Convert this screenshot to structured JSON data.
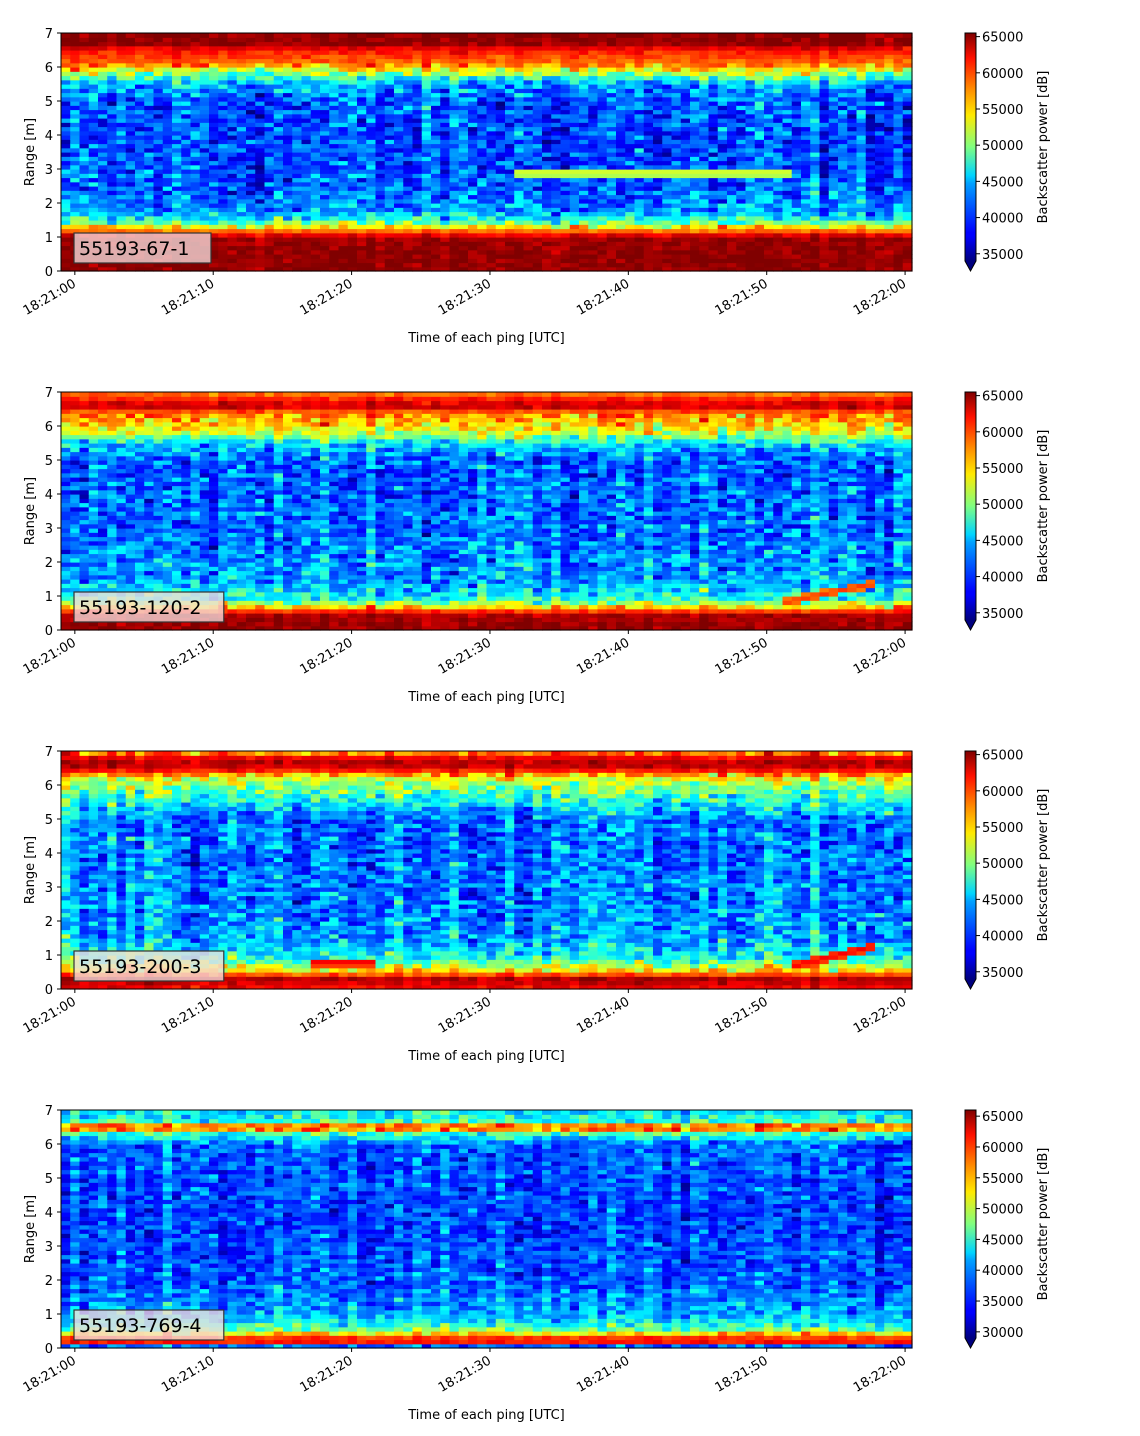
{
  "chart_data": [
    {
      "type": "heatmap",
      "label": "55193-67-1",
      "xlabel": "Time of each ping [UTC]",
      "ylabel": "Range [m]",
      "x_ticks": [
        "18:21:00",
        "18:21:10",
        "18:21:20",
        "18:21:30",
        "18:21:40",
        "18:21:50",
        "18:22:00"
      ],
      "x_range": [
        "18:21:00",
        "18:22:00"
      ],
      "y_ticks": [
        0,
        1,
        2,
        3,
        4,
        5,
        6,
        7
      ],
      "ylim": [
        0,
        7
      ],
      "colorbar": {
        "label": "Backscatter power [dB]",
        "colormap": "jet",
        "ticks": [
          35000,
          40000,
          45000,
          50000,
          55000,
          60000,
          65000
        ],
        "range": [
          34000,
          65500
        ],
        "extend": "min"
      },
      "profile": [
        {
          "range": 0.2,
          "value": 65000
        },
        {
          "range": 0.5,
          "value": 65000
        },
        {
          "range": 1.0,
          "value": 64500
        },
        {
          "range": 1.25,
          "value": 56000
        },
        {
          "range": 1.5,
          "value": 47000
        },
        {
          "range": 1.8,
          "value": 42500
        },
        {
          "range": 2.5,
          "value": 40500
        },
        {
          "range": 4.0,
          "value": 40000
        },
        {
          "range": 5.0,
          "value": 40500
        },
        {
          "range": 5.5,
          "value": 43000
        },
        {
          "range": 5.8,
          "value": 50000
        },
        {
          "range": 6.1,
          "value": 58000
        },
        {
          "range": 6.5,
          "value": 61000
        },
        {
          "range": 6.7,
          "value": 65000
        }
      ],
      "features": [
        {
          "description": "echo trace",
          "t_start": "18:21:32",
          "t_end": "18:21:52",
          "range": 2.9,
          "value": 53000
        }
      ]
    },
    {
      "type": "heatmap",
      "label": "55193-120-2",
      "xlabel": "Time of each ping [UTC]",
      "ylabel": "Range [m]",
      "x_ticks": [
        "18:21:00",
        "18:21:10",
        "18:21:20",
        "18:21:30",
        "18:21:40",
        "18:21:50",
        "18:22:00"
      ],
      "x_range": [
        "18:21:00",
        "18:22:00"
      ],
      "y_ticks": [
        0,
        1,
        2,
        3,
        4,
        5,
        6,
        7
      ],
      "ylim": [
        0,
        7
      ],
      "colorbar": {
        "label": "Backscatter power [dB]",
        "colormap": "jet",
        "ticks": [
          35000,
          40000,
          45000,
          50000,
          55000,
          60000,
          65000
        ],
        "range": [
          34000,
          65500
        ],
        "extend": "min"
      },
      "profile": [
        {
          "range": 0.1,
          "value": 65000
        },
        {
          "range": 0.45,
          "value": 64000
        },
        {
          "range": 0.65,
          "value": 57000
        },
        {
          "range": 0.9,
          "value": 47000
        },
        {
          "range": 1.5,
          "value": 43000
        },
        {
          "range": 3.0,
          "value": 41500
        },
        {
          "range": 5.0,
          "value": 41000
        },
        {
          "range": 5.5,
          "value": 45000
        },
        {
          "range": 5.8,
          "value": 52000
        },
        {
          "range": 6.1,
          "value": 56000
        },
        {
          "range": 6.4,
          "value": 58000
        },
        {
          "range": 6.6,
          "value": 64000
        },
        {
          "range": 6.85,
          "value": 60000
        },
        {
          "range": 7.0,
          "value": 57000
        }
      ],
      "features": [
        {
          "description": "rising echo",
          "t_start": "18:21:51",
          "t_end": "18:21:58",
          "range_start": 0.8,
          "range_end": 1.4,
          "value": 60000
        }
      ]
    },
    {
      "type": "heatmap",
      "label": "55193-200-3",
      "xlabel": "Time of each ping [UTC]",
      "ylabel": "Range [m]",
      "x_ticks": [
        "18:21:00",
        "18:21:10",
        "18:21:20",
        "18:21:30",
        "18:21:40",
        "18:21:50",
        "18:22:00"
      ],
      "x_range": [
        "18:21:00",
        "18:22:00"
      ],
      "y_ticks": [
        0,
        1,
        2,
        3,
        4,
        5,
        6,
        7
      ],
      "ylim": [
        0,
        7
      ],
      "colorbar": {
        "label": "Backscatter power [dB]",
        "colormap": "jet",
        "ticks": [
          35000,
          40000,
          45000,
          50000,
          55000,
          60000,
          65000
        ],
        "range": [
          34000,
          65500
        ],
        "extend": "min"
      },
      "profile": [
        {
          "range": 0.1,
          "value": 62000
        },
        {
          "range": 0.3,
          "value": 64500
        },
        {
          "range": 0.55,
          "value": 55000
        },
        {
          "range": 0.9,
          "value": 47000
        },
        {
          "range": 1.5,
          "value": 43000
        },
        {
          "range": 3.0,
          "value": 42000
        },
        {
          "range": 5.0,
          "value": 41500
        },
        {
          "range": 5.5,
          "value": 46000
        },
        {
          "range": 5.9,
          "value": 50000
        },
        {
          "range": 6.2,
          "value": 53000
        },
        {
          "range": 6.5,
          "value": 63000
        },
        {
          "range": 6.75,
          "value": 64000
        },
        {
          "range": 7.0,
          "value": 56000
        }
      ],
      "features": [
        {
          "description": "echo trace",
          "t_start": "18:21:17",
          "t_end": "18:21:22",
          "range": 0.8,
          "value": 62000
        },
        {
          "description": "rising echo",
          "t_start": "18:21:52",
          "t_end": "18:21:58",
          "range_start": 0.7,
          "range_end": 1.3,
          "value": 62000
        }
      ]
    },
    {
      "type": "heatmap",
      "label": "55193-769-4",
      "xlabel": "Time of each ping [UTC]",
      "ylabel": "Range [m]",
      "x_ticks": [
        "18:21:00",
        "18:21:10",
        "18:21:20",
        "18:21:30",
        "18:21:40",
        "18:21:50",
        "18:22:00"
      ],
      "x_range": [
        "18:21:00",
        "18:22:00"
      ],
      "y_ticks": [
        0,
        1,
        2,
        3,
        4,
        5,
        6,
        7
      ],
      "ylim": [
        0,
        7
      ],
      "colorbar": {
        "label": "Backscatter power [dB]",
        "colormap": "jet",
        "ticks": [
          30000,
          35000,
          40000,
          45000,
          50000,
          55000,
          60000,
          65000
        ],
        "range": [
          29000,
          66000
        ],
        "extend": "min"
      },
      "profile": [
        {
          "range": 0.1,
          "value": 38000
        },
        {
          "range": 0.2,
          "value": 64000
        },
        {
          "range": 0.35,
          "value": 58000
        },
        {
          "range": 0.6,
          "value": 45000
        },
        {
          "range": 1.0,
          "value": 40000
        },
        {
          "range": 2.0,
          "value": 37000
        },
        {
          "range": 4.0,
          "value": 36000
        },
        {
          "range": 6.0,
          "value": 37500
        },
        {
          "range": 6.35,
          "value": 46000
        },
        {
          "range": 6.5,
          "value": 64500
        },
        {
          "range": 6.65,
          "value": 45000
        },
        {
          "range": 7.0,
          "value": 42000
        }
      ],
      "features": []
    }
  ]
}
